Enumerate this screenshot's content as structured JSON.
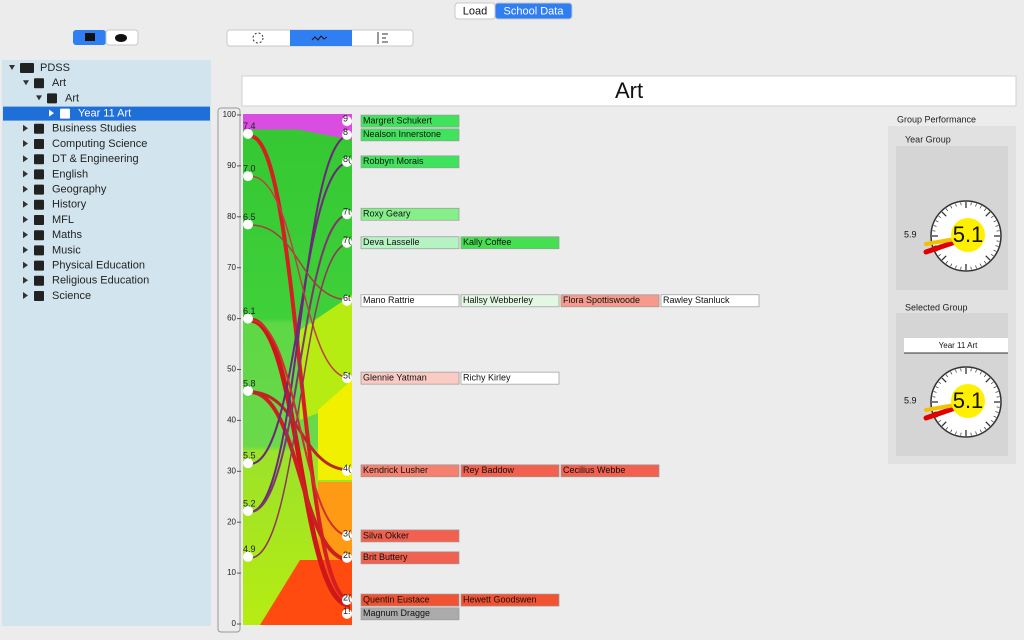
{
  "toolbar": {
    "buttons": [
      "Load",
      "School Data"
    ],
    "selected": 1
  },
  "tree": {
    "nodes": [
      {
        "label": "PDSS",
        "depth": 0
      },
      {
        "label": "Art",
        "depth": 1
      },
      {
        "label": "Art",
        "depth": 2
      },
      {
        "label": "Year 11 Art",
        "depth": 3,
        "selected": true
      },
      {
        "label": "Business Studies",
        "depth": 1
      },
      {
        "label": "Computing Science",
        "depth": 1
      },
      {
        "label": "DT & Engineering",
        "depth": 1
      },
      {
        "label": "English",
        "depth": 1
      },
      {
        "label": "Geography",
        "depth": 1
      },
      {
        "label": "History",
        "depth": 1
      },
      {
        "label": "MFL",
        "depth": 1
      },
      {
        "label": "Maths",
        "depth": 1
      },
      {
        "label": "Music",
        "depth": 1
      },
      {
        "label": "Physical Education",
        "depth": 1
      },
      {
        "label": "Religious Education",
        "depth": 1
      },
      {
        "label": "Science",
        "depth": 1
      }
    ]
  },
  "chart": {
    "title": "Art",
    "ylim": [
      0,
      100
    ],
    "yticks": [
      0,
      10,
      20,
      30,
      40,
      50,
      60,
      70,
      80,
      90,
      100
    ],
    "left_nodes": [
      {
        "label": "7.4",
        "level": 96.3
      },
      {
        "label": "7.0",
        "level": 88
      },
      {
        "label": "6.5",
        "level": 78.5
      },
      {
        "label": "6.1",
        "level": 60
      },
      {
        "label": "5.8",
        "level": 45.8
      },
      {
        "label": "5.5",
        "level": 31.6
      },
      {
        "label": "5.2",
        "level": 22.2
      },
      {
        "label": "4.9",
        "level": 13.2
      }
    ],
    "rows": [
      {
        "marker": "9",
        "level": 98.8,
        "students": [
          {
            "name": "Margret Schukert",
            "color": "#3fe35c"
          }
        ]
      },
      {
        "marker": "8",
        "level": 96.1,
        "students": [
          {
            "name": "Nealson Innerstone",
            "color": "#3fe35c"
          }
        ]
      },
      {
        "marker": "8(",
        "level": 90.8,
        "students": [
          {
            "name": "Robbyn Morais",
            "color": "#3fe35c"
          }
        ]
      },
      {
        "marker": "7t",
        "level": 80.5,
        "students": [
          {
            "name": "Roxy Geary",
            "color": "#85f08a"
          }
        ]
      },
      {
        "marker": "7(",
        "level": 74.9,
        "students": [
          {
            "name": "Deva Lasselle",
            "color": "#b5f3c3"
          },
          {
            "name": "Kally Coffee",
            "color": "#45e052"
          }
        ]
      },
      {
        "marker": "6t",
        "level": 63.5,
        "students": [
          {
            "name": "Mano Rattrie",
            "color": "#ffffff"
          },
          {
            "name": "Hallsy Webberley",
            "color": "#e3f8e3"
          },
          {
            "name": "Flora Spottiswoode",
            "color": "#f59a8c"
          },
          {
            "name": "Rawley Stanluck",
            "color": "#ffffff"
          }
        ]
      },
      {
        "marker": "5t",
        "level": 48.3,
        "students": [
          {
            "name": "Glennie Yatman",
            "color": "#f9cbc3"
          },
          {
            "name": "Richy Kirley",
            "color": "#ffffff"
          }
        ]
      },
      {
        "marker": "4(",
        "level": 30.1,
        "students": [
          {
            "name": "Kendrick Lusher",
            "color": "#f4806f"
          },
          {
            "name": "Rey Baddow",
            "color": "#f2604f"
          },
          {
            "name": "Cecilius Webbe",
            "color": "#f2604f"
          }
        ]
      },
      {
        "marker": "3(",
        "level": 17.3,
        "students": [
          {
            "name": "Silva Okker",
            "color": "#f2604f"
          }
        ]
      },
      {
        "marker": "2t",
        "level": 13,
        "students": [
          {
            "name": "Brit Buttery",
            "color": "#f2604f"
          }
        ]
      },
      {
        "marker": "2(",
        "level": 4.7,
        "students": [
          {
            "name": "Quentin Eustace",
            "color": "#f05232"
          },
          {
            "name": "Hewett Goodswen",
            "color": "#f05232"
          }
        ]
      },
      {
        "marker": "1!",
        "level": 2,
        "students": [
          {
            "name": "Magnum Dragge",
            "color": "#ababab"
          }
        ]
      }
    ]
  },
  "performance": {
    "title": "Group Performance",
    "year_group": {
      "label": "Year Group",
      "target": "5.9",
      "value": "5.1"
    },
    "selected_group": {
      "label": "Selected Group",
      "group": "Year 11 Art",
      "target": "5.9",
      "value": "5.1"
    }
  }
}
